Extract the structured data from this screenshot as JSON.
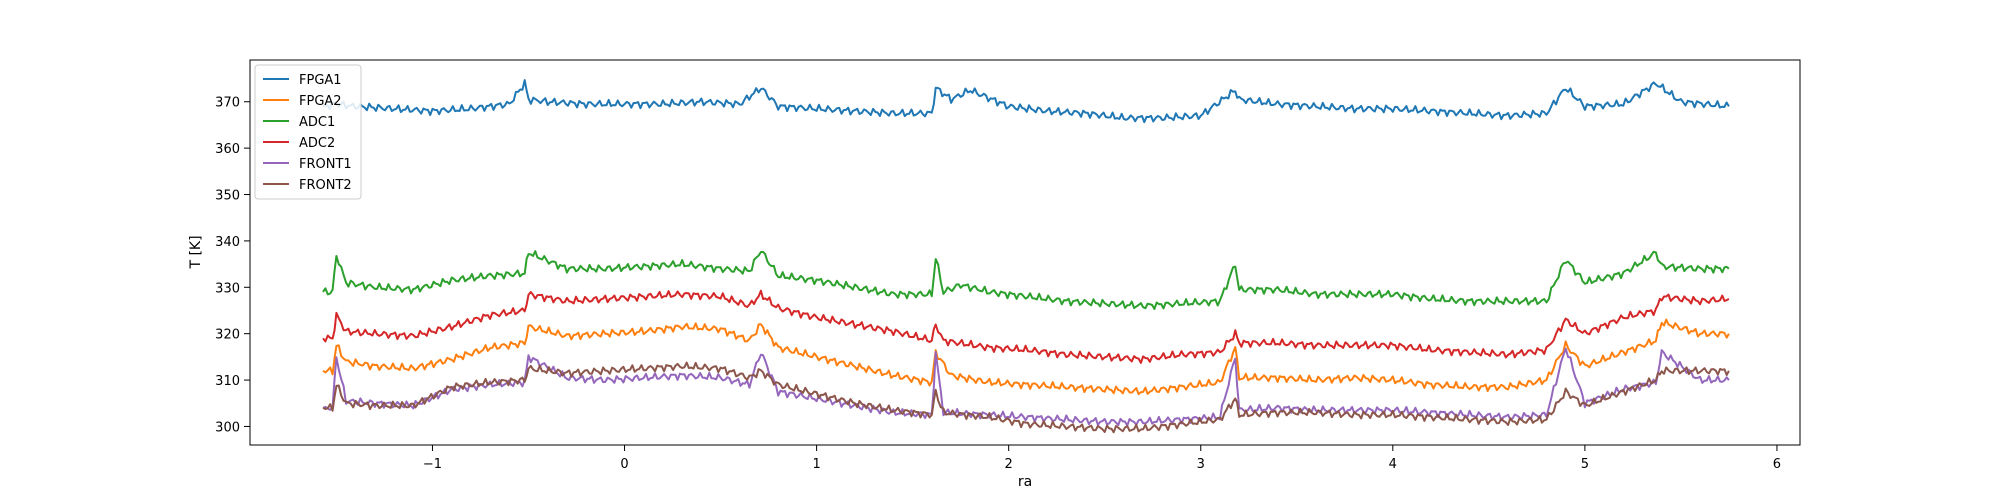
{
  "chart_data": {
    "type": "line",
    "title": "",
    "xlabel": "ra",
    "ylabel": "T [K]",
    "xlim": [
      -1.95,
      6.12
    ],
    "ylim": [
      296,
      379
    ],
    "xticks": [
      -1,
      0,
      1,
      2,
      3,
      4,
      5,
      6
    ],
    "xtick_labels": [
      "−1",
      "0",
      "1",
      "2",
      "3",
      "4",
      "5",
      "6"
    ],
    "yticks": [
      300,
      310,
      320,
      330,
      340,
      350,
      360,
      370
    ],
    "ytick_labels": [
      "300",
      "310",
      "320",
      "330",
      "340",
      "350",
      "360",
      "370"
    ],
    "grid": false,
    "legend_position": "top-left",
    "spikes_x": [
      -1.5,
      -0.52,
      0.71,
      1.62,
      3.18,
      4.9,
      5.37
    ],
    "series": [
      {
        "name": "FPGA1",
        "color": "#1f77b4",
        "x": [
          -1.57,
          -1.5,
          -1.4,
          -1.2,
          -1.0,
          -0.8,
          -0.6,
          -0.52,
          -0.5,
          -0.4,
          -0.2,
          0.0,
          0.2,
          0.4,
          0.6,
          0.71,
          0.8,
          1.0,
          1.2,
          1.4,
          1.6,
          1.62,
          1.7,
          1.8,
          2.0,
          2.2,
          2.4,
          2.6,
          2.8,
          3.0,
          3.18,
          3.2,
          3.4,
          3.6,
          3.8,
          4.0,
          4.2,
          4.4,
          4.6,
          4.8,
          4.9,
          5.0,
          5.2,
          5.37,
          5.5,
          5.75
        ],
        "y": [
          369,
          369.5,
          369,
          368.5,
          368,
          368.5,
          369.5,
          374,
          370.5,
          370,
          369.5,
          369.5,
          369.5,
          370,
          369.5,
          373,
          369,
          368.5,
          368,
          367.5,
          367.5,
          373,
          370.5,
          372.5,
          369,
          368,
          367.5,
          366.5,
          366.5,
          367,
          372.5,
          370.5,
          369.5,
          369,
          368.5,
          368.5,
          368,
          367.5,
          367,
          367.5,
          373,
          369,
          369.5,
          374,
          370,
          369
        ]
      },
      {
        "name": "FPGA2",
        "color": "#ff7f0e",
        "x": [
          -1.57,
          -1.52,
          -1.5,
          -1.45,
          -1.3,
          -1.1,
          -0.9,
          -0.7,
          -0.52,
          -0.5,
          -0.3,
          -0.1,
          0.1,
          0.3,
          0.5,
          0.65,
          0.71,
          0.8,
          1.0,
          1.2,
          1.4,
          1.6,
          1.62,
          1.7,
          1.9,
          2.1,
          2.3,
          2.5,
          2.7,
          2.9,
          3.1,
          3.18,
          3.2,
          3.4,
          3.6,
          3.8,
          4.0,
          4.2,
          4.4,
          4.6,
          4.8,
          4.9,
          5.0,
          5.2,
          5.37,
          5.4,
          5.6,
          5.75
        ],
        "y": [
          312,
          312,
          317.5,
          314,
          313,
          312.5,
          314.5,
          317,
          318,
          321.5,
          319.5,
          320,
          320.5,
          321.5,
          321,
          318.5,
          322,
          317,
          315,
          313,
          311,
          309.5,
          316,
          311,
          309.5,
          309,
          308.5,
          308,
          307.5,
          308.5,
          309.5,
          317,
          310.5,
          310.5,
          310,
          310.5,
          310,
          309,
          308.5,
          308.5,
          310,
          317.5,
          313,
          316,
          318.5,
          322.5,
          320,
          320
        ]
      },
      {
        "name": "ADC1",
        "color": "#2ca02c",
        "x": [
          -1.57,
          -1.52,
          -1.5,
          -1.45,
          -1.3,
          -1.1,
          -0.9,
          -0.7,
          -0.52,
          -0.5,
          -0.3,
          -0.1,
          0.1,
          0.3,
          0.5,
          0.65,
          0.71,
          0.8,
          1.0,
          1.2,
          1.4,
          1.6,
          1.62,
          1.66,
          1.75,
          1.9,
          2.1,
          2.3,
          2.5,
          2.7,
          2.9,
          3.1,
          3.18,
          3.2,
          3.4,
          3.6,
          3.8,
          4.0,
          4.2,
          4.4,
          4.6,
          4.8,
          4.9,
          5.0,
          5.2,
          5.37,
          5.4,
          5.6,
          5.75
        ],
        "y": [
          329,
          329,
          337,
          331,
          330,
          329.5,
          331.5,
          332.5,
          333,
          337.5,
          334,
          334,
          334.5,
          335,
          334,
          333.5,
          338,
          332.5,
          331.5,
          330,
          328.5,
          328.5,
          336.5,
          329,
          330.5,
          329,
          328,
          327,
          326.5,
          326,
          326.5,
          327,
          335,
          329.5,
          329.5,
          328.5,
          328.5,
          328.5,
          327.5,
          327,
          327,
          327,
          336,
          331,
          333,
          337.5,
          334.5,
          334,
          334
        ]
      },
      {
        "name": "ADC2",
        "color": "#d62728",
        "x": [
          -1.57,
          -1.52,
          -1.5,
          -1.45,
          -1.3,
          -1.1,
          -0.9,
          -0.7,
          -0.52,
          -0.5,
          -0.3,
          -0.1,
          0.1,
          0.3,
          0.5,
          0.65,
          0.71,
          0.8,
          1.0,
          1.2,
          1.4,
          1.6,
          1.62,
          1.66,
          1.9,
          2.1,
          2.3,
          2.5,
          2.7,
          2.9,
          3.1,
          3.18,
          3.2,
          3.4,
          3.6,
          3.8,
          4.0,
          4.2,
          4.4,
          4.6,
          4.8,
          4.9,
          5.0,
          5.2,
          5.37,
          5.4,
          5.6,
          5.75
        ],
        "y": [
          319,
          319,
          324,
          320.5,
          320,
          319.5,
          321.5,
          324,
          325,
          328.5,
          327,
          327.5,
          328,
          328.5,
          328,
          326,
          328.5,
          325.5,
          323.5,
          322,
          320.5,
          318.5,
          322,
          318.5,
          317,
          316.5,
          315.5,
          315,
          314.5,
          315.5,
          316,
          320,
          318,
          318,
          317.5,
          317.5,
          317.5,
          316.5,
          316,
          315.5,
          316.5,
          323,
          320,
          323.5,
          325,
          328,
          327,
          327.5
        ]
      },
      {
        "name": "FRONT1",
        "color": "#9467bd",
        "x": [
          -1.57,
          -1.52,
          -1.5,
          -1.45,
          -1.3,
          -1.1,
          -0.9,
          -0.7,
          -0.52,
          -0.5,
          -0.3,
          -0.1,
          0.1,
          0.3,
          0.5,
          0.65,
          0.71,
          0.8,
          1.0,
          1.2,
          1.4,
          1.6,
          1.62,
          1.66,
          1.9,
          2.1,
          2.3,
          2.5,
          2.7,
          2.9,
          3.1,
          3.18,
          3.2,
          3.4,
          3.6,
          3.8,
          4.0,
          4.2,
          4.4,
          4.6,
          4.8,
          4.9,
          5.0,
          5.2,
          5.37,
          5.4,
          5.6,
          5.75
        ],
        "y": [
          304,
          304,
          315,
          305.5,
          305,
          304.5,
          308,
          309,
          309.5,
          315,
          310.5,
          310,
          310.5,
          311,
          310.5,
          309,
          316,
          307.5,
          306,
          304.5,
          303,
          302.5,
          316,
          303,
          302.5,
          302,
          301.5,
          301,
          301,
          301.5,
          302,
          315,
          303.5,
          304,
          303.5,
          303.5,
          303.5,
          303,
          302.5,
          302,
          302.5,
          317,
          305,
          308,
          309.5,
          316,
          310,
          310
        ]
      },
      {
        "name": "FRONT2",
        "color": "#8c564b",
        "x": [
          -1.57,
          -1.52,
          -1.5,
          -1.45,
          -1.3,
          -1.1,
          -0.9,
          -0.7,
          -0.52,
          -0.5,
          -0.3,
          -0.1,
          0.1,
          0.3,
          0.5,
          0.65,
          0.71,
          0.8,
          1.0,
          1.2,
          1.4,
          1.6,
          1.62,
          1.66,
          1.9,
          2.1,
          2.3,
          2.5,
          2.7,
          2.9,
          3.1,
          3.18,
          3.2,
          3.4,
          3.6,
          3.8,
          4.0,
          4.2,
          4.4,
          4.6,
          4.8,
          4.9,
          5.0,
          5.2,
          5.37,
          5.4,
          5.6,
          5.75
        ],
        "y": [
          304,
          304,
          309,
          305,
          304.5,
          304.5,
          308.5,
          309.5,
          310,
          312.5,
          311.5,
          312,
          312.5,
          313,
          312.5,
          310.5,
          312,
          309,
          307,
          305,
          303.5,
          302.5,
          307.5,
          303,
          302,
          300.5,
          300,
          299.5,
          299.5,
          300.5,
          301.5,
          306,
          302.5,
          303,
          303,
          302.5,
          302.5,
          302,
          301.5,
          301,
          301.5,
          307.5,
          304.5,
          307.5,
          310,
          312,
          312,
          312
        ]
      }
    ]
  }
}
